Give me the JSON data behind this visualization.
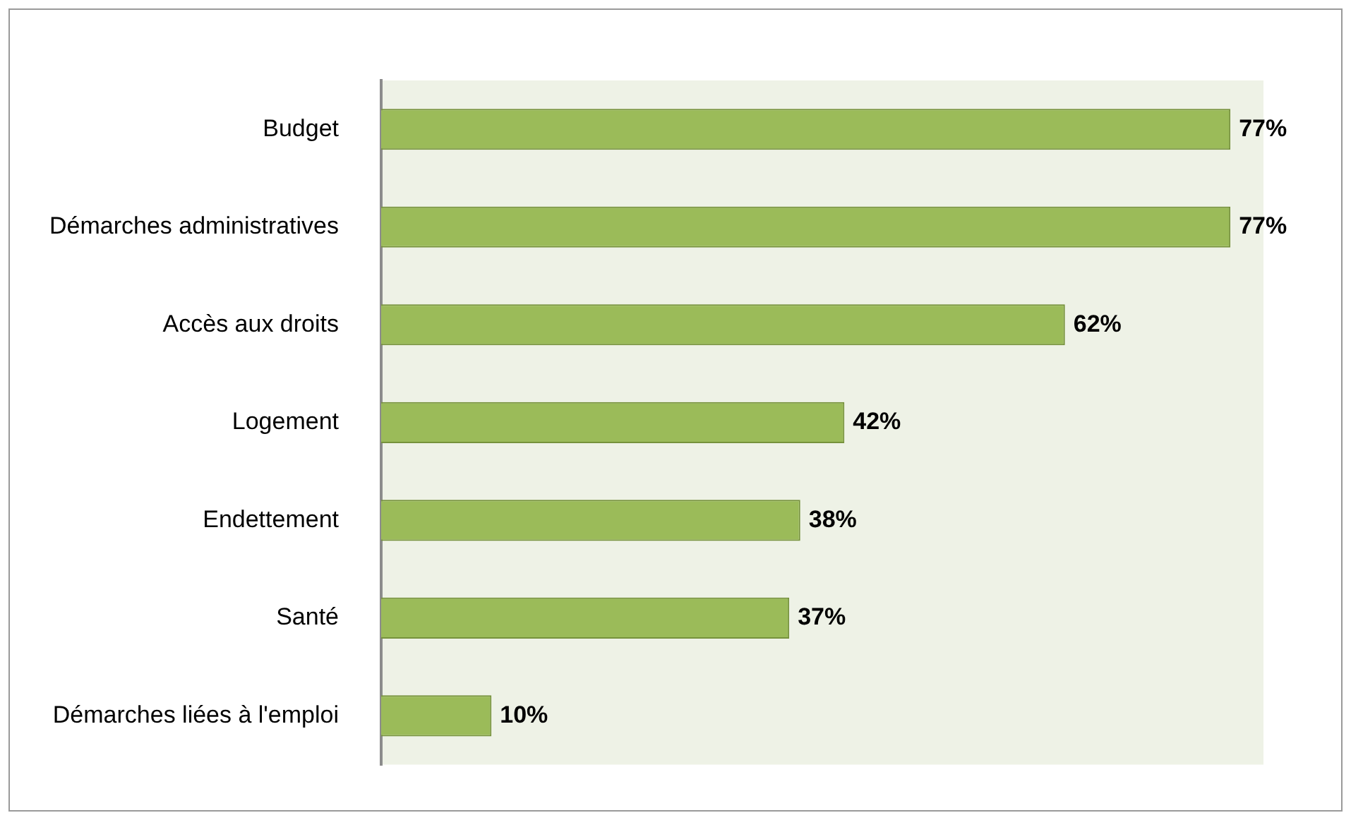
{
  "chart_data": {
    "type": "bar",
    "orientation": "horizontal",
    "categories": [
      "Budget",
      "Démarches administratives",
      "Accès aux droits",
      "Logement",
      "Endettement",
      "Santé",
      "Démarches liées à l'emploi"
    ],
    "values": [
      77,
      77,
      62,
      42,
      38,
      37,
      10
    ],
    "value_labels": [
      "77%",
      "77%",
      "62%",
      "42%",
      "38%",
      "37%",
      "10%"
    ],
    "color": "#9bbb59"
  }
}
